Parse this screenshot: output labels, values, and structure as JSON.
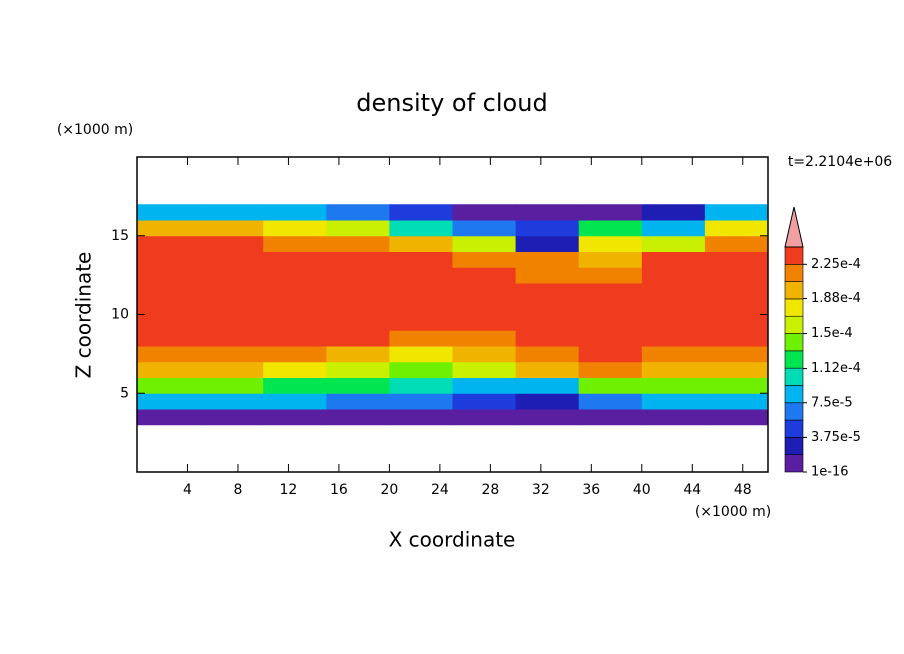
{
  "chart_data": {
    "type": "contour",
    "title": "density of cloud",
    "xlabel": "X coordinate",
    "ylabel": "Z coordinate",
    "x_unit": "(×1000 m)",
    "y_unit": "(×1000 m)",
    "annotation": "t=2.2104e+06",
    "xlim": [
      0,
      50
    ],
    "ylim": [
      0,
      20
    ],
    "xticks": [
      4,
      8,
      12,
      16,
      20,
      24,
      28,
      32,
      36,
      40,
      44,
      48
    ],
    "yticks": [
      5,
      10,
      15
    ],
    "x": [
      2.5,
      7.5,
      12.5,
      17.5,
      22.5,
      27.5,
      32.5,
      37.5,
      42.5,
      47.5
    ],
    "z": [
      3.5,
      4.5,
      5.5,
      6.5,
      7.5,
      8.5,
      9.5,
      10.5,
      11.5,
      12.5,
      13.5,
      14.5,
      15.5,
      16.5
    ],
    "values": [
      [
        1e-05,
        1e-05,
        1e-05,
        1e-05,
        1e-05,
        1e-05,
        1e-05,
        1e-05,
        1e-05,
        1e-05
      ],
      [
        8e-05,
        8e-05,
        8e-05,
        7e-05,
        6e-05,
        4e-05,
        3e-05,
        6e-05,
        8e-05,
        8e-05
      ],
      [
        0.00014,
        0.00014,
        0.00013,
        0.00012,
        0.0001,
        8e-05,
        9e-05,
        0.00014,
        0.00014,
        0.00014
      ],
      [
        0.00019,
        0.00019,
        0.00018,
        0.00016,
        0.00014,
        0.00015,
        0.0002,
        0.00022,
        0.00019,
        0.00019
      ],
      [
        0.00021,
        0.00022,
        0.00022,
        0.0002,
        0.00018,
        0.00019,
        0.00022,
        0.00023,
        0.00022,
        0.00021
      ],
      [
        0.00023,
        0.00023,
        0.00023,
        0.00023,
        0.00022,
        0.00022,
        0.00023,
        0.00023,
        0.00023,
        0.00023
      ],
      [
        0.000235,
        0.00024,
        0.00024,
        0.00024,
        0.000235,
        0.00023,
        0.00024,
        0.00023,
        0.000235,
        0.00023
      ],
      [
        0.000235,
        0.00024,
        0.00024,
        0.00024,
        0.00024,
        0.000235,
        0.00023,
        0.000235,
        0.00024,
        0.000235
      ],
      [
        0.000235,
        0.00024,
        0.00024,
        0.00024,
        0.00024,
        0.000235,
        0.00023,
        0.000235,
        0.00024,
        0.000235
      ],
      [
        0.000235,
        0.00024,
        0.00024,
        0.000235,
        0.000235,
        0.00023,
        0.00022,
        0.00021,
        0.000235,
        0.000235
      ],
      [
        0.00023,
        0.000235,
        0.000235,
        0.00023,
        0.00023,
        0.00022,
        0.00021,
        0.0002,
        0.00023,
        0.00023
      ],
      [
        0.000225,
        0.00023,
        0.00022,
        0.00021,
        0.00019,
        0.00015,
        3e-05,
        0.00018,
        0.00016,
        0.00022
      ],
      [
        0.0002,
        0.0002,
        0.00018,
        0.00015,
        0.0001,
        7e-05,
        5e-05,
        0.00012,
        8e-05,
        0.00018
      ],
      [
        9e-05,
        9e-05,
        8e-05,
        6e-05,
        4e-05,
        1e-05,
        1e-05,
        1e-05,
        3e-05,
        8e-05
      ]
    ],
    "levels": [
      1e-16,
      1.875e-05,
      3.75e-05,
      5.625e-05,
      7.5e-05,
      9.375e-05,
      0.0001125,
      0.00013125,
      0.00015,
      0.00016875,
      0.0001875,
      0.00020625,
      0.000225,
      0.00024375
    ],
    "colors": [
      "#5a1ea0",
      "#1e1eb4",
      "#1e3cdc",
      "#1e78f0",
      "#00b4f0",
      "#00dcb4",
      "#00e650",
      "#6ef000",
      "#c8f000",
      "#f0e600",
      "#f0b400",
      "#f08200",
      "#f03c1e"
    ],
    "extend_color": "#f0a0a0",
    "colorbar_ticks": [
      {
        "value": 1e-16,
        "label": "1e-16"
      },
      {
        "value": 3.75e-05,
        "label": "3.75e-5"
      },
      {
        "value": 7.5e-05,
        "label": "7.5e-5"
      },
      {
        "value": 0.000112,
        "label": "1.12e-4"
      },
      {
        "value": 0.00015,
        "label": "1.5e-4"
      },
      {
        "value": 0.000188,
        "label": "1.88e-4"
      },
      {
        "value": 0.000225,
        "label": "2.25e-4"
      }
    ]
  }
}
